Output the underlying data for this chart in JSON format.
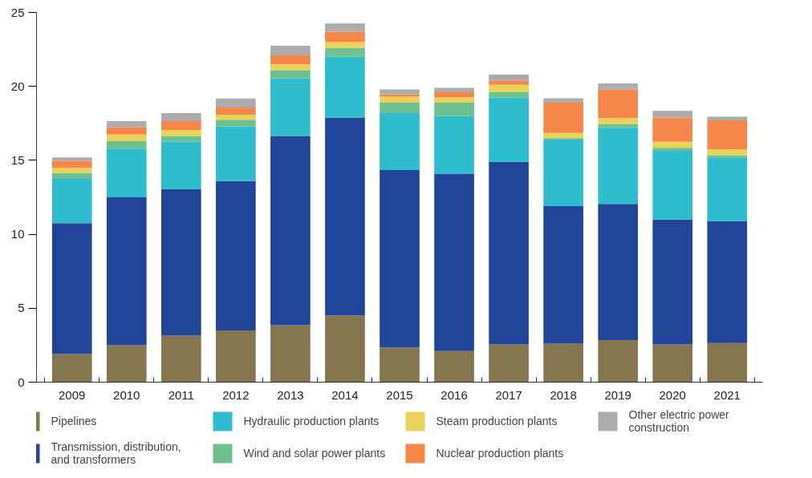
{
  "chart_data": {
    "type": "bar",
    "stacked": true,
    "categories": [
      "2009",
      "2010",
      "2011",
      "2012",
      "2013",
      "2014",
      "2015",
      "2016",
      "2017",
      "2018",
      "2019",
      "2020",
      "2021"
    ],
    "ylim": [
      0,
      25
    ],
    "yticks": [
      0,
      5,
      10,
      15,
      20,
      25
    ],
    "grid": false,
    "legend": "bottom",
    "series": [
      {
        "name": "Pipelines",
        "color": "#857650",
        "values": [
          1.9,
          2.5,
          3.15,
          3.5,
          3.85,
          4.5,
          2.35,
          2.1,
          2.55,
          2.6,
          2.85,
          2.55,
          2.65
        ]
      },
      {
        "name": "Transmission, distribution, and transformers",
        "color": "#214598",
        "values": [
          8.85,
          10.0,
          9.9,
          10.1,
          12.8,
          13.4,
          12.0,
          12.0,
          12.35,
          9.3,
          9.2,
          8.45,
          8.25
        ]
      },
      {
        "name": "Hydraulic production plants",
        "color": "#2ebdcd",
        "values": [
          3.0,
          3.3,
          3.2,
          3.7,
          3.9,
          4.1,
          3.85,
          3.9,
          4.35,
          4.5,
          5.15,
          4.65,
          4.3
        ]
      },
      {
        "name": "Wind and solar power plants",
        "color": "#6cc18e",
        "values": [
          0.4,
          0.5,
          0.4,
          0.45,
          0.55,
          0.6,
          0.7,
          0.9,
          0.35,
          0.1,
          0.25,
          0.2,
          0.15
        ]
      },
      {
        "name": "Steam production plants",
        "color": "#e8d25a",
        "values": [
          0.33,
          0.45,
          0.4,
          0.33,
          0.4,
          0.4,
          0.4,
          0.35,
          0.5,
          0.35,
          0.4,
          0.4,
          0.4
        ]
      },
      {
        "name": "Nuclear production plants",
        "color": "#f5874a",
        "values": [
          0.5,
          0.5,
          0.6,
          0.5,
          0.6,
          0.7,
          0.15,
          0.35,
          0.3,
          2.05,
          1.95,
          1.65,
          1.95
        ]
      },
      {
        "name": "Other electric power construction",
        "color": "#acacac",
        "values": [
          0.22,
          0.4,
          0.55,
          0.6,
          0.65,
          0.55,
          0.35,
          0.3,
          0.4,
          0.3,
          0.4,
          0.45,
          0.25
        ]
      }
    ]
  }
}
